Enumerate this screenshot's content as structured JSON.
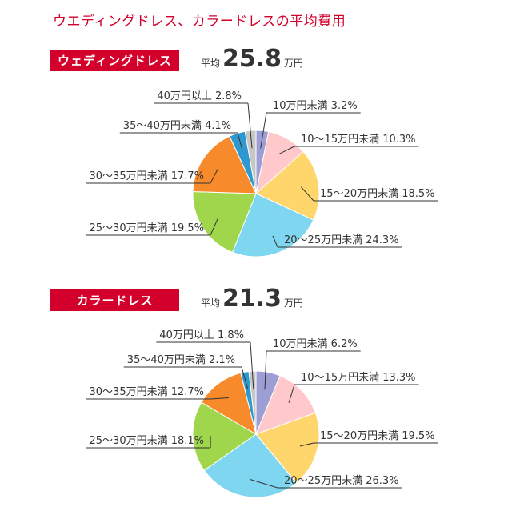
{
  "page_title": "ウエディングドレス、カラードレスの平均費用",
  "chart_data": [
    {
      "type": "pie",
      "title": "ウェディングドレス",
      "average_label": "平均",
      "average_value": "25.8",
      "average_unit": "万円",
      "slices": [
        {
          "label": "10万円未満 3.2%",
          "value": 3.2,
          "color": "#9d9ed3"
        },
        {
          "label": "10～15万円未満 10.3%",
          "value": 10.3,
          "color": "#ffc9cc"
        },
        {
          "label": "15～20万円未満 18.5%",
          "value": 18.5,
          "color": "#ffd66b"
        },
        {
          "label": "20～25万円未満 24.3%",
          "value": 24.3,
          "color": "#7fd6f0"
        },
        {
          "label": "25～30万円未満 19.5%",
          "value": 19.5,
          "color": "#9fd64c"
        },
        {
          "label": "30～35万円未満 17.7%",
          "value": 17.7,
          "color": "#f78a2b"
        },
        {
          "label": "35～40万円未満 4.1%",
          "value": 4.1,
          "color": "#2e98cf"
        },
        {
          "label": "40万円以上 2.8%",
          "value": 2.8,
          "color": "#c7c7c7"
        }
      ]
    },
    {
      "type": "pie",
      "title": "カラードレス",
      "average_label": "平均",
      "average_value": "21.3",
      "average_unit": "万円",
      "slices": [
        {
          "label": "10万円未満 6.2%",
          "value": 6.2,
          "color": "#9d9ed3"
        },
        {
          "label": "10～15万円未満 13.3%",
          "value": 13.3,
          "color": "#ffc9cc"
        },
        {
          "label": "15～20万円未満 19.5%",
          "value": 19.5,
          "color": "#ffd66b"
        },
        {
          "label": "20～25万円未満 26.3%",
          "value": 26.3,
          "color": "#7fd6f0"
        },
        {
          "label": "25～30万円未満 18.1%",
          "value": 18.1,
          "color": "#9fd64c"
        },
        {
          "label": "30～35万円未満 12.7%",
          "value": 12.7,
          "color": "#f78a2b"
        },
        {
          "label": "35～40万円未満 2.1%",
          "value": 2.1,
          "color": "#2e98cf"
        },
        {
          "label": "40万円以上 1.8%",
          "value": 1.8,
          "color": "#c7c7c7"
        }
      ]
    }
  ]
}
